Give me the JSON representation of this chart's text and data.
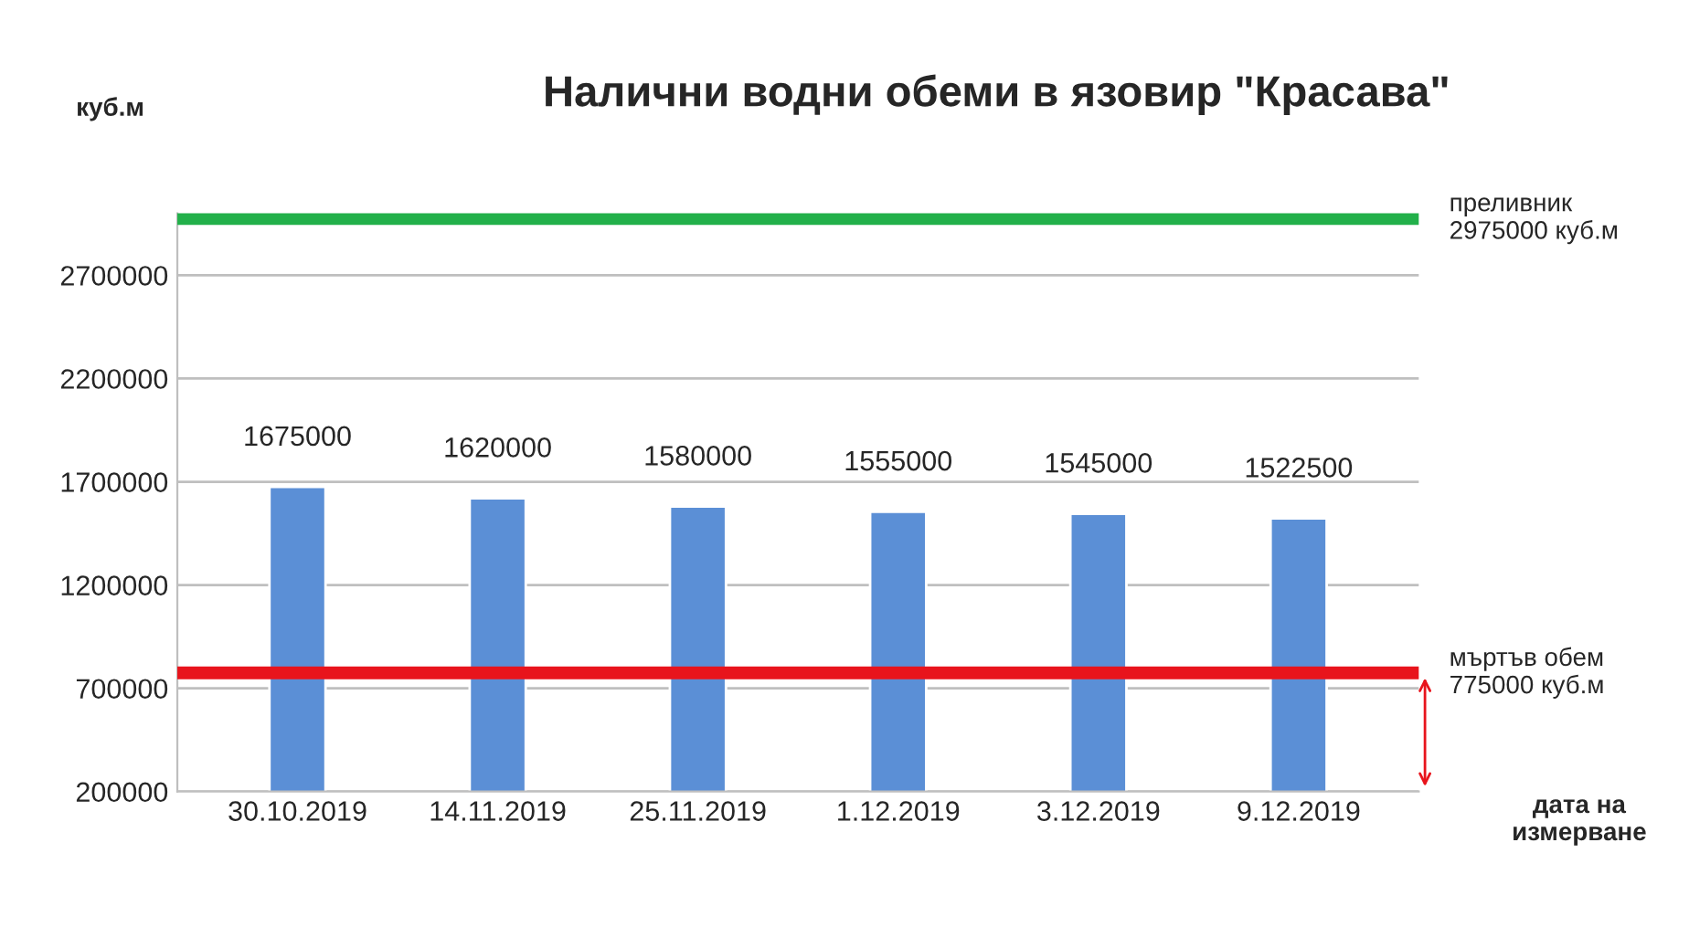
{
  "chart_data": {
    "type": "bar",
    "title": "Налични водни обеми в язовир \"Красава\"",
    "ylabel": "куб.м",
    "xlabel": "дата на измерване",
    "categories": [
      "30.10.2019",
      "14.11.2019",
      "25.11.2019",
      "1.12.2019",
      "3.12.2019",
      "9.12.2019"
    ],
    "values": [
      1675000,
      1620000,
      1580000,
      1555000,
      1545000,
      1522500
    ],
    "color": "#5b8fd6",
    "data_labels": true,
    "ylim": [
      200000,
      3000000
    ],
    "yticks": [
      200000,
      700000,
      1200000,
      1700000,
      2200000,
      2700000
    ],
    "grid": "y",
    "ref_lines": [
      {
        "axis": "y",
        "value": 2975000,
        "label": "преливник\n2975000 куб.м",
        "color": "#22b04a",
        "line_style": "solid"
      },
      {
        "axis": "y",
        "value": 775000,
        "label": "мъртъв обем\n775000 куб.м",
        "color": "#e8141c",
        "line_style": "solid"
      }
    ]
  }
}
